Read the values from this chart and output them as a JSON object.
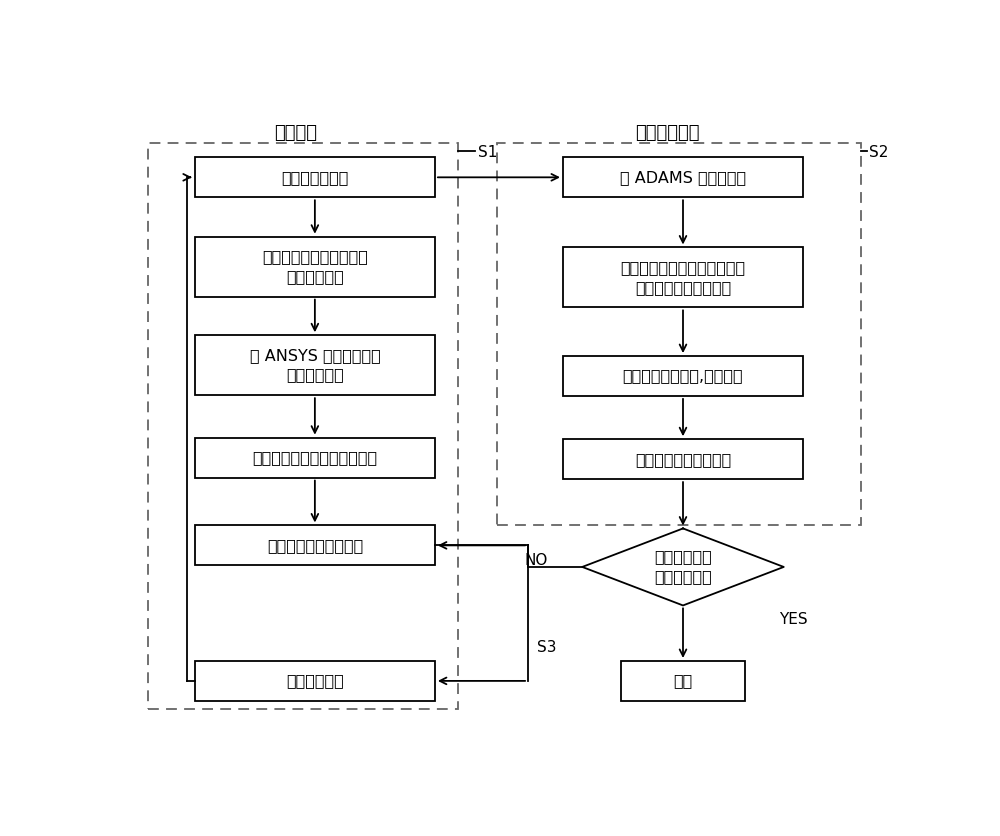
{
  "bg_color": "#ffffff",
  "left_section_label": "结构优化",
  "right_section_label": "驱动系统设计",
  "s1_label": "S1",
  "s2_label": "S2",
  "s3_label": "S3",
  "no_label": "NO",
  "yes_label": "YES",
  "left_boxes": [
    {
      "id": "L1",
      "text": "机械臂初始参数"
    },
    {
      "id": "L2",
      "text": "在有限元中定义优化目标\n函数、自变量"
    },
    {
      "id": "L3",
      "text": "在 ANSYS 中模拟边界条\n件与附加载荷"
    },
    {
      "id": "L4",
      "text": "定义收敛条件，实施结构优化"
    },
    {
      "id": "L5",
      "text": "更新目标函数与自变量"
    },
    {
      "id": "L6",
      "text": "更新初始参数"
    }
  ],
  "right_boxes": [
    {
      "id": "R1",
      "text": "在 ADAMS 中动态仿真"
    },
    {
      "id": "R2",
      "text": "利用给定轨迹与负载进行动态\n模拟获得关节所需力矩"
    },
    {
      "id": "R3",
      "text": "获得驱动系统质量,进行选型"
    },
    {
      "id": "R4",
      "text": "更新目标函数与自变量"
    },
    {
      "id": "R5",
      "text": "终止"
    }
  ],
  "diamond_text": "优化结果是否\n在允许范围内",
  "font_size": 11.5,
  "label_font_size": 13
}
